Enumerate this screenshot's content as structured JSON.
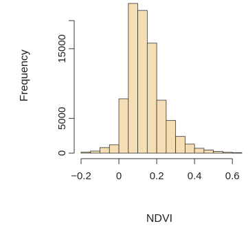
{
  "chart_data": {
    "type": "bar",
    "title": "",
    "xlabel": "NDVI",
    "ylabel": "Frequency",
    "bin_edges": [
      -0.2,
      -0.15,
      -0.1,
      -0.05,
      0.0,
      0.05,
      0.1,
      0.15,
      0.2,
      0.25,
      0.3,
      0.35,
      0.4,
      0.45,
      0.5,
      0.55,
      0.6,
      0.65
    ],
    "values": [
      150,
      300,
      800,
      1200,
      7800,
      21500,
      20500,
      15800,
      7600,
      4700,
      2400,
      1300,
      700,
      450,
      250,
      120,
      70
    ],
    "xlim": [
      -0.2,
      0.65
    ],
    "ylim": [
      0,
      21500
    ],
    "x_ticks": [
      {
        "value": -0.2,
        "label": "−0.2"
      },
      {
        "value": 0,
        "label": "0"
      },
      {
        "value": 0.2,
        "label": "0.2"
      },
      {
        "value": 0.4,
        "label": "0.4"
      },
      {
        "value": 0.6,
        "label": "0.6"
      }
    ],
    "y_ticks": [
      {
        "value": 0,
        "label": "0"
      },
      {
        "value": 5000,
        "label": "5000"
      },
      {
        "value": 15000,
        "label": "15000"
      }
    ],
    "grid": false,
    "bar_color": "#f5deb3",
    "edge_color": "#333333"
  }
}
